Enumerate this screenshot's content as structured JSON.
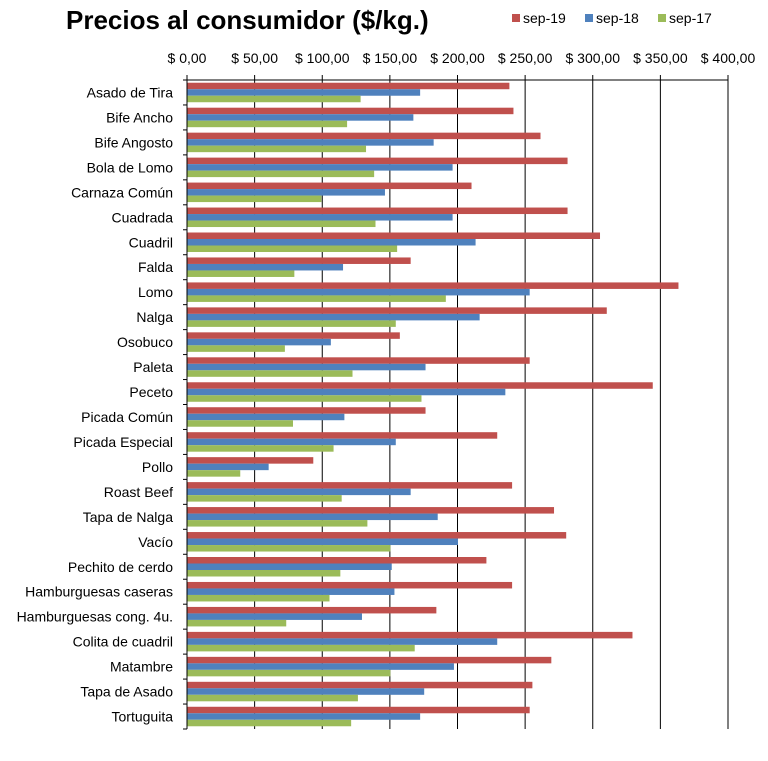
{
  "chart_data": {
    "type": "bar",
    "orientation": "horizontal",
    "title": "Precios al consumidor ($/kg.)",
    "xlabel": "",
    "ylabel": "",
    "xlim": [
      0,
      400
    ],
    "x_ticks": [
      "$ 0,00",
      "$ 50,00",
      "$ 100,00",
      "$ 150,00",
      "$ 200,00",
      "$ 250,00",
      "$ 300,00",
      "$ 350,00",
      "$ 400,00"
    ],
    "x_tick_values": [
      0,
      50,
      100,
      150,
      200,
      250,
      300,
      350,
      400
    ],
    "grid": "vertical",
    "legend_position": "top-right",
    "categories": [
      "Asado de Tira",
      "Bife Ancho",
      "Bife Angosto",
      "Bola de Lomo",
      "Carnaza Común",
      "Cuadrada",
      "Cuadril",
      "Falda",
      "Lomo",
      "Nalga",
      "Osobuco",
      "Paleta",
      "Peceto",
      "Picada Común",
      "Picada Especial",
      "Pollo",
      "Roast Beef",
      "Tapa de Nalga",
      "Vacío",
      "Pechito de cerdo",
      "Hamburguesas caseras",
      "Hamburguesas cong. 4u.",
      "Colita de cuadril",
      "Matambre",
      "Tapa de Asado",
      "Tortuguita"
    ],
    "series": [
      {
        "name": "sep-19",
        "color": "#c0504d",
        "values": [
          238,
          241,
          261,
          281,
          210,
          281,
          305,
          165,
          363,
          310,
          157,
          253,
          344,
          176,
          229,
          93,
          240,
          271,
          280,
          221,
          240,
          184,
          329,
          269,
          255,
          253
        ]
      },
      {
        "name": "sep-18",
        "color": "#4f81bd",
        "values": [
          172,
          167,
          182,
          196,
          146,
          196,
          213,
          115,
          253,
          216,
          106,
          176,
          235,
          116,
          154,
          60,
          165,
          185,
          200,
          151,
          153,
          129,
          229,
          197,
          175,
          172
        ]
      },
      {
        "name": "sep-17",
        "color": "#9bbb59",
        "values": [
          128,
          118,
          132,
          138,
          99,
          139,
          155,
          79,
          191,
          154,
          72,
          122,
          173,
          78,
          108,
          39,
          114,
          133,
          150,
          113,
          105,
          73,
          168,
          150,
          126,
          121
        ]
      }
    ]
  }
}
